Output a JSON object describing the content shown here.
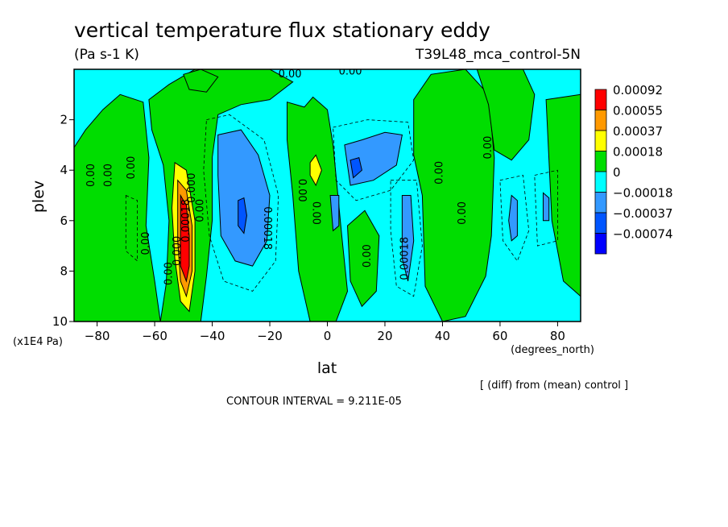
{
  "chart_data": {
    "type": "heatmap",
    "title": "vertical temperature flux stationary eddy",
    "units": "(Pa s-1 K)",
    "run_label": "T39L48_mca_control-5N",
    "xlabel": "lat",
    "x_units": "(degrees_north)",
    "ylabel": "plev",
    "y_units": "(x1E4 Pa)",
    "xlim": [
      -88,
      88
    ],
    "ylim": [
      0,
      10
    ],
    "y_inverted": true,
    "x_ticks": [
      -80,
      -60,
      -40,
      -20,
      0,
      20,
      40,
      60,
      80
    ],
    "y_ticks": [
      2,
      4,
      6,
      8,
      10
    ],
    "contour_interval": "CONTOUR INTERVAL = 9.211E-05",
    "footnote": "[ (diff) from (mean) control ]",
    "legend": {
      "placement": "right",
      "entries": [
        {
          "label": "0.00092",
          "color": "#ff0000"
        },
        {
          "label": "0.00055",
          "color": "#ff9900"
        },
        {
          "label": "0.00037",
          "color": "#ffff00"
        },
        {
          "label": "0.00018",
          "color": "#00dd00"
        },
        {
          "label": "0",
          "color": "#00ffff"
        },
        {
          "label": "−0.00018",
          "color": "#3399ff"
        },
        {
          "label": "−0.00037",
          "color": "#0055ff"
        },
        {
          "label": "−0.00074",
          "color": "#0000ff"
        }
      ]
    },
    "colors": {
      "background_negative": "#00ffff",
      "positive_low": "#00dd00",
      "positive_mid": "#ffff00",
      "positive_high": "#ff9900",
      "positive_max": "#ff0000",
      "negative_mid": "#3399ff",
      "negative_high": "#0055ff"
    },
    "contour_labels": [
      {
        "text": "0.00",
        "lat": -82,
        "plev": 4.2,
        "rotate": -90
      },
      {
        "text": "0.00",
        "lat": -76,
        "plev": 4.2,
        "rotate": -90
      },
      {
        "text": "0.00",
        "lat": -68,
        "plev": 3.9,
        "rotate": -90
      },
      {
        "text": "0.00",
        "lat": -63,
        "plev": 6.9,
        "rotate": -90
      },
      {
        "text": "0.00",
        "lat": -55,
        "plev": 8.1,
        "rotate": -90
      },
      {
        "text": "0.000",
        "lat": -52,
        "plev": 7.2,
        "rotate": -90
      },
      {
        "text": "0.00018",
        "lat": -49,
        "plev": 6.0,
        "rotate": -90
      },
      {
        "text": "0.00",
        "lat": -44,
        "plev": 5.6,
        "rotate": -90
      },
      {
        "text": "0.000",
        "lat": -47,
        "plev": 4.7,
        "rotate": -90
      },
      {
        "text": "0.00018",
        "lat": -21,
        "plev": 6.3,
        "rotate": 90
      },
      {
        "text": "0.00",
        "lat": -9,
        "plev": 4.8,
        "rotate": 90
      },
      {
        "text": "0.00",
        "lat": -4,
        "plev": 5.7,
        "rotate": 90
      },
      {
        "text": "0.00",
        "lat": 14,
        "plev": 7.4,
        "rotate": -90
      },
      {
        "text": "0.00018",
        "lat": 27,
        "plev": 7.5,
        "rotate": -90
      },
      {
        "text": "0.00",
        "lat": 39,
        "plev": 4.1,
        "rotate": -90
      },
      {
        "text": "0.00",
        "lat": 47,
        "plev": 5.7,
        "rotate": -90
      },
      {
        "text": "0.00",
        "lat": 56,
        "plev": 3.1,
        "rotate": -90
      },
      {
        "text": "0.00",
        "lat": -13,
        "plev": 0.2,
        "rotate": 0
      },
      {
        "text": "0.00",
        "lat": 8,
        "plev": 0.1,
        "rotate": 0
      }
    ]
  }
}
